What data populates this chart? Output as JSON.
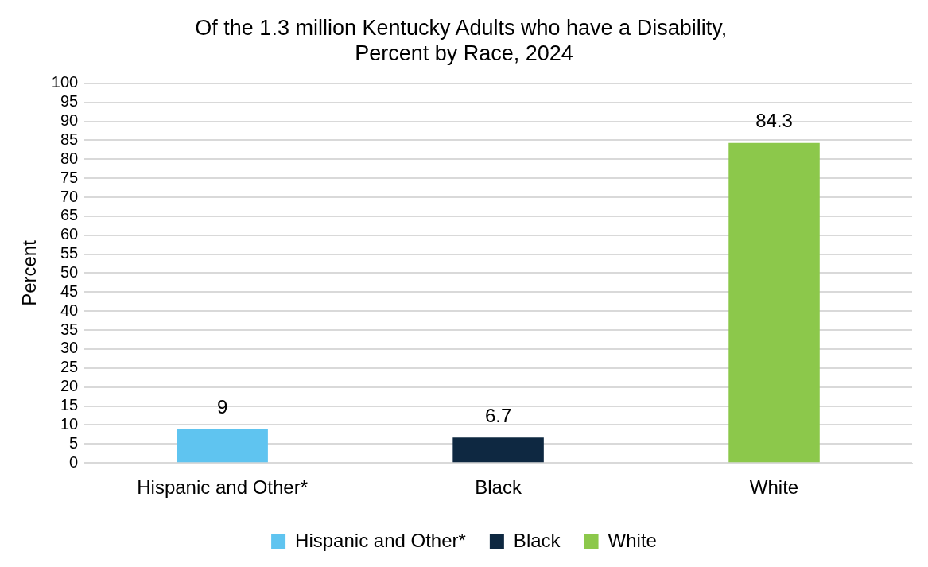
{
  "chart_data": {
    "type": "bar",
    "title": "Of the 1.3 million Kentucky Adults who have a Disability, Percent by Race, 2024",
    "ylabel": "Percent",
    "categories": [
      "Hispanic and Other*",
      "Black",
      "White"
    ],
    "series": [
      {
        "name": "Hispanic and Other*",
        "color": "#5fc4f0",
        "values": [
          9,
          null,
          null
        ]
      },
      {
        "name": "Black",
        "color": "#0e2841",
        "values": [
          null,
          6.7,
          null
        ]
      },
      {
        "name": "White",
        "color": "#8cc84b",
        "values": [
          null,
          null,
          84.3
        ]
      }
    ],
    "ylim": [
      0,
      100
    ],
    "yticks": [
      0,
      5,
      10,
      15,
      20,
      25,
      30,
      35,
      40,
      45,
      50,
      55,
      60,
      65,
      70,
      75,
      80,
      85,
      90,
      95,
      100
    ],
    "grid": "y",
    "legend": "bottom",
    "data_labels": true
  }
}
